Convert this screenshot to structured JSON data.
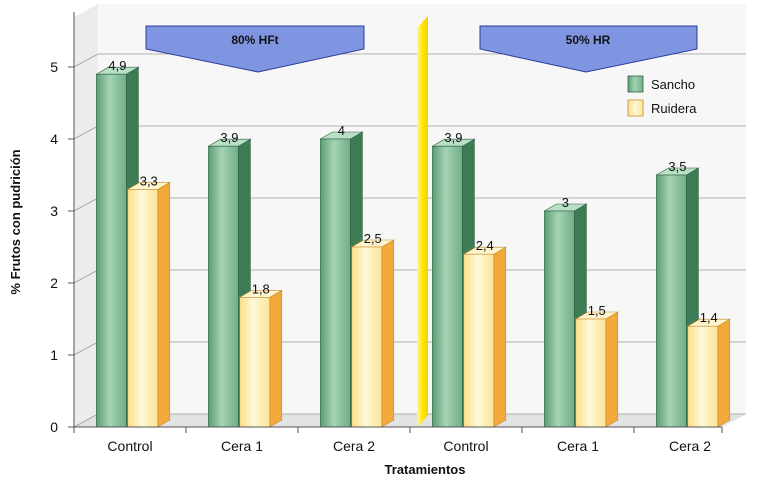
{
  "chart_data": {
    "type": "bar",
    "title": "",
    "xlabel": "Tratamientos",
    "ylabel": "% Frutos con pudrición",
    "ylim": [
      0,
      5
    ],
    "yticks": [
      "0",
      "1",
      "2",
      "3",
      "4",
      "5"
    ],
    "grid": true,
    "legend_position": "top-right",
    "categories": [
      "Control",
      "Cera 1",
      "Cera 2",
      "Control",
      "Cera 1",
      "Cera 2"
    ],
    "groups": [
      {
        "label": "80% HFt",
        "categories": [
          0,
          1,
          2
        ]
      },
      {
        "label": "50% HR",
        "categories": [
          3,
          4,
          5
        ]
      }
    ],
    "series": [
      {
        "name": "Sancho",
        "color": "#6fae86",
        "values": [
          4.9,
          3.9,
          4,
          3.9,
          3,
          3.5
        ],
        "labels": [
          "4,9",
          "3,9",
          "4",
          "3,9",
          "3",
          "3,5"
        ]
      },
      {
        "name": "Ruidera",
        "color": "#fde79a",
        "values": [
          3.3,
          1.8,
          2.5,
          2.4,
          1.5,
          1.4
        ],
        "labels": [
          "3,3",
          "1,8",
          "2,5",
          "2,4",
          "1,5",
          "1,4"
        ]
      }
    ]
  },
  "colors": {
    "banner": "#7f95e2",
    "divider": "#ffe600",
    "sancho_front": "#8cc39f",
    "sancho_side": "#3d7c55",
    "ruidera_front": "#fdeeb2",
    "ruidera_side": "#f2a93a"
  }
}
